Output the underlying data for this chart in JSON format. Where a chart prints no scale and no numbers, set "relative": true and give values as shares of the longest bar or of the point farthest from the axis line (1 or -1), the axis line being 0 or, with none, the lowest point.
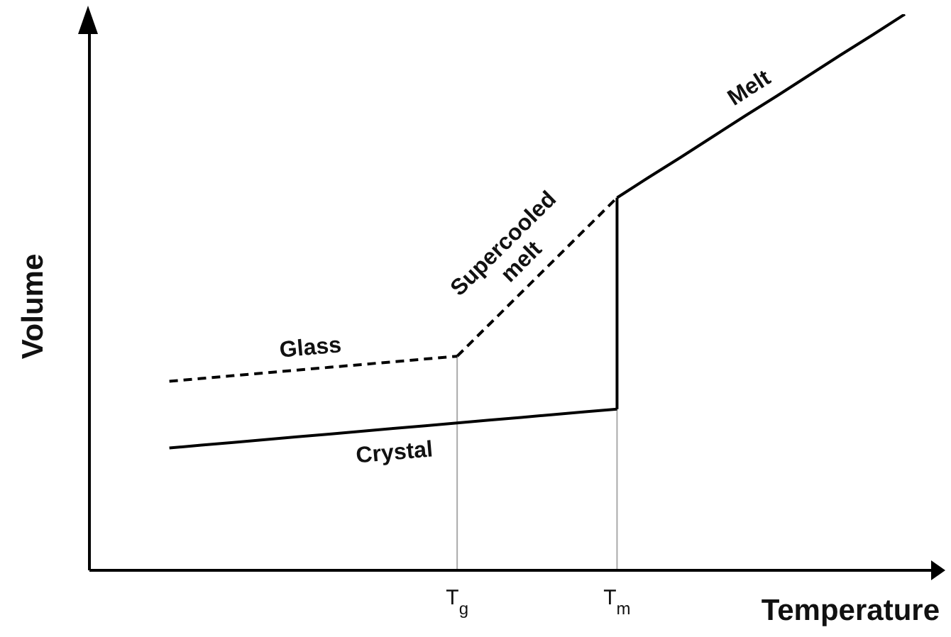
{
  "chart_data": {
    "type": "line",
    "relative": true,
    "xlabel": "Temperature",
    "ylabel": "Volume",
    "tick_labels": "x",
    "marker": "none",
    "line_style": "solid",
    "categories": [
      null,
      null,
      null,
      null,
      null,
      null,
      null,
      null,
      null,
      "T$_{g}$",
      null,
      null,
      null,
      null,
      "T$_{m}$",
      null,
      null,
      null,
      null,
      null,
      null,
      null,
      null,
      null
    ],
    "series": [
      {
        "name": "Crystal",
        "color": "#000000",
        "values": [
          0.22,
          0.225,
          0.23,
          0.235,
          0.24,
          0.245,
          0.25,
          0.255,
          0.26,
          0.265,
          0.27,
          0.275,
          0.28,
          0.285,
          0.29,
          null,
          null,
          null,
          null,
          null,
          null,
          null,
          null,
          null
        ]
      },
      {
        "color": "#000000",
        "x": [
          "T$_{m}$",
          "T$_{m}$"
        ],
        "values": [
          0.29,
          0.67
        ]
      },
      {
        "name": "Melt",
        "color": "#000000",
        "values": [
          null,
          null,
          null,
          null,
          null,
          null,
          null,
          null,
          null,
          null,
          null,
          null,
          null,
          null,
          0.67,
          0.707,
          0.743,
          0.78,
          0.817,
          0.853,
          0.89,
          0.927,
          0.963,
          1
        ]
      },
      {
        "name": "Glass",
        "color": "#000000",
        "line_style": "dashed",
        "values": [
          0.34,
          0.345,
          0.35,
          0.355,
          0.36,
          0.365,
          0.37,
          0.375,
          0.38,
          0.385,
          null,
          null,
          null,
          null,
          null,
          null,
          null,
          null,
          null,
          null,
          null,
          null,
          null,
          null
        ]
      },
      {
        "name": "Supercooled melt",
        "color": "#000000",
        "line_style": "dashed",
        "values": [
          null,
          null,
          null,
          null,
          null,
          null,
          null,
          null,
          null,
          0.385,
          0.442,
          0.499,
          0.556,
          0.613,
          0.67,
          null,
          null,
          null,
          null,
          null,
          null,
          null,
          null,
          null
        ]
      }
    ],
    "ref_lines": [
      {
        "axis": "x",
        "value": "T$_{g}$",
        "color": "#aaaaaa"
      },
      {
        "axis": "x",
        "value": "T$_{m}$",
        "color": "#aaaaaa"
      }
    ]
  }
}
